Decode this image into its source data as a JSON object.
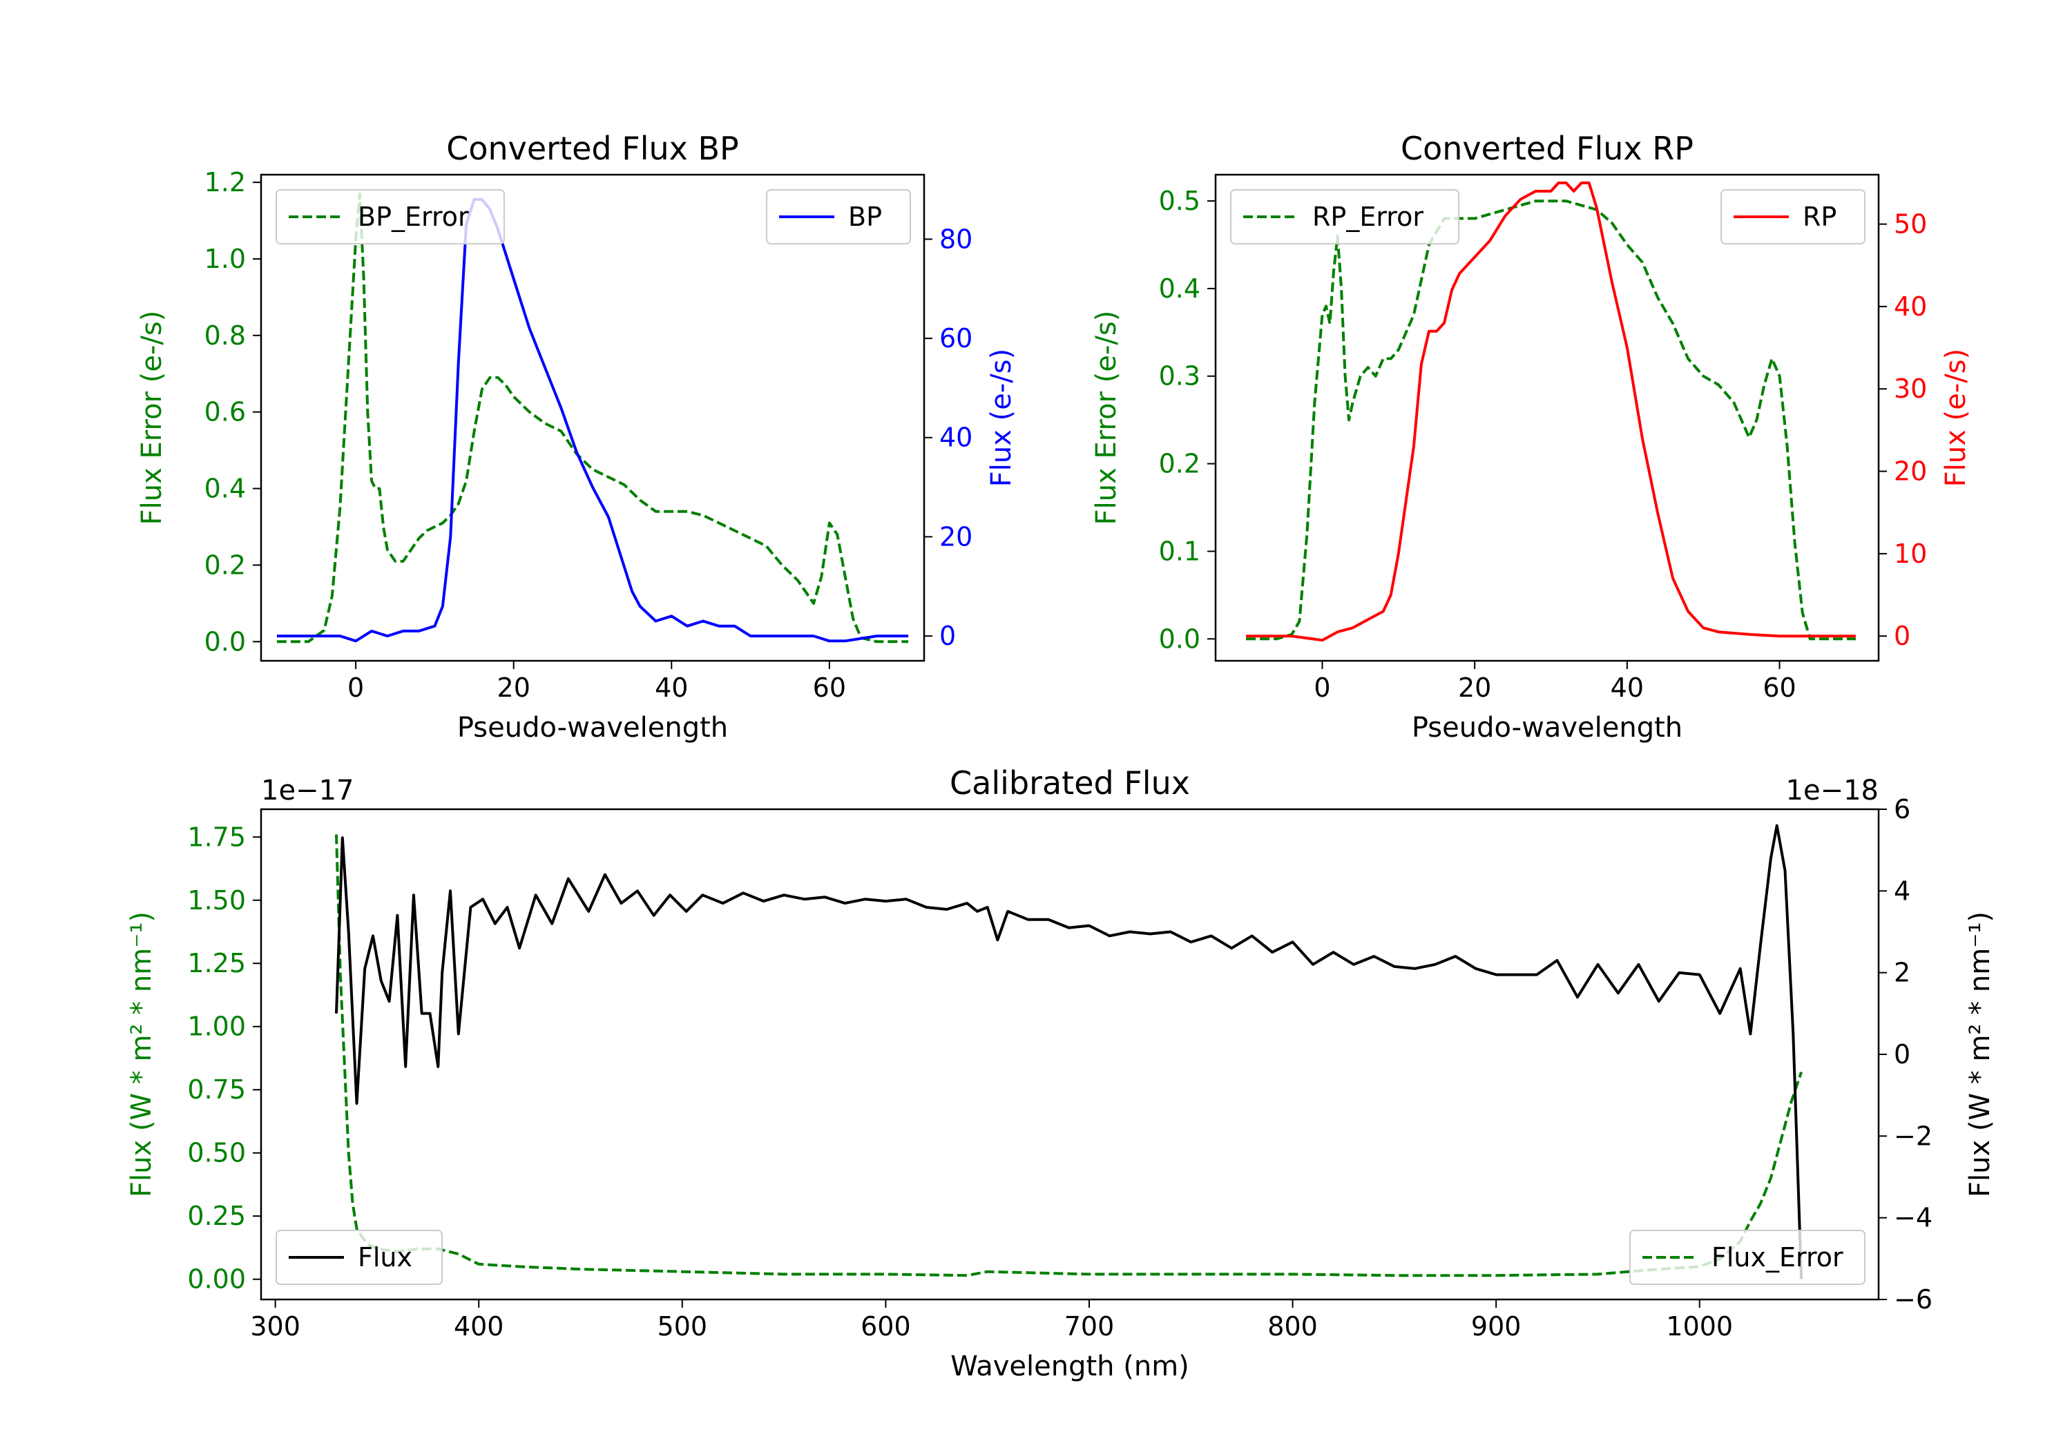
{
  "colors": {
    "green": "#008000",
    "blue": "#0000ff",
    "red": "#ff0000",
    "black": "#000000"
  },
  "chart_data": [
    {
      "id": "bp",
      "type": "line",
      "title": "Converted Flux BP",
      "xlabel": "Pseudo-wavelength",
      "ylabel_left": "Flux Error (e-/s)",
      "ylabel_right": "Flux (e-/s)",
      "xlim": [
        -12,
        72
      ],
      "ylim_left": [
        -0.05,
        1.22
      ],
      "ylim_right": [
        -5,
        93
      ],
      "xticks": [
        0,
        20,
        40,
        60
      ],
      "yticks_left": [
        0.0,
        0.2,
        0.4,
        0.6,
        0.8,
        1.0,
        1.2
      ],
      "yticks_right": [
        0,
        20,
        40,
        60,
        80
      ],
      "legend_left": "BP_Error",
      "legend_right": "BP",
      "series_left": {
        "name": "BP_Error",
        "color": "green",
        "style": "dashed",
        "x": [
          -10,
          -6,
          -4,
          -3,
          -2,
          -1,
          0,
          0.5,
          1,
          1.5,
          2,
          2.5,
          3,
          3.5,
          4,
          5,
          6,
          7,
          8,
          9,
          10,
          11,
          12,
          13,
          14,
          15,
          16,
          17,
          18,
          19,
          20,
          22,
          24,
          26,
          28,
          30,
          32,
          34,
          36,
          38,
          40,
          42,
          44,
          46,
          48,
          50,
          52,
          54,
          56,
          57,
          58,
          59,
          60,
          61,
          62,
          63,
          64,
          66,
          70
        ],
        "y": [
          0.0,
          0.0,
          0.03,
          0.12,
          0.35,
          0.7,
          1.05,
          1.17,
          0.95,
          0.6,
          0.42,
          0.4,
          0.4,
          0.3,
          0.24,
          0.21,
          0.21,
          0.24,
          0.27,
          0.29,
          0.3,
          0.31,
          0.33,
          0.36,
          0.42,
          0.55,
          0.66,
          0.69,
          0.69,
          0.67,
          0.64,
          0.6,
          0.57,
          0.55,
          0.49,
          0.45,
          0.43,
          0.41,
          0.37,
          0.34,
          0.34,
          0.34,
          0.33,
          0.31,
          0.29,
          0.27,
          0.25,
          0.2,
          0.16,
          0.13,
          0.1,
          0.17,
          0.31,
          0.28,
          0.17,
          0.06,
          0.01,
          0.0,
          0.0
        ]
      },
      "series_right": {
        "name": "BP",
        "color": "blue",
        "style": "solid",
        "x": [
          -10,
          -6,
          -4,
          -2,
          0,
          2,
          4,
          6,
          8,
          10,
          11,
          12,
          13,
          14,
          15,
          16,
          17,
          18,
          20,
          22,
          24,
          26,
          28,
          30,
          32,
          34,
          35,
          36,
          38,
          40,
          42,
          44,
          46,
          48,
          50,
          54,
          58,
          60,
          62,
          66,
          70
        ],
        "y": [
          0,
          0,
          0,
          0,
          -1,
          1,
          0,
          1,
          1,
          2,
          6,
          20,
          55,
          83,
          88,
          88,
          86,
          82,
          72,
          62,
          54,
          46,
          37,
          30,
          24,
          14,
          9,
          6,
          3,
          4,
          2,
          3,
          2,
          2,
          0,
          0,
          0,
          -1,
          -1,
          0,
          0
        ]
      }
    },
    {
      "id": "rp",
      "type": "line",
      "title": "Converted Flux RP",
      "xlabel": "Pseudo-wavelength",
      "ylabel_left": "Flux Error (e-/s)",
      "ylabel_right": "Flux (e-/s)",
      "xlim": [
        -14,
        73
      ],
      "ylim_left": [
        -0.025,
        0.53
      ],
      "ylim_right": [
        -3,
        56
      ],
      "xticks": [
        0,
        20,
        40,
        60
      ],
      "yticks_left": [
        0.0,
        0.1,
        0.2,
        0.3,
        0.4,
        0.5
      ],
      "yticks_right": [
        0,
        10,
        20,
        30,
        40,
        50
      ],
      "legend_left": "RP_Error",
      "legend_right": "RP",
      "series_left": {
        "name": "RP_Error",
        "color": "green",
        "style": "dashed",
        "x": [
          -10,
          -6,
          -4,
          -3,
          -2,
          -1,
          0,
          0.5,
          1,
          1.5,
          2,
          2.5,
          3,
          3.5,
          4,
          5,
          6,
          7,
          8,
          9,
          10,
          12,
          14,
          16,
          18,
          20,
          22,
          24,
          26,
          28,
          30,
          32,
          34,
          36,
          38,
          40,
          42,
          44,
          46,
          48,
          50,
          52,
          54,
          55,
          56,
          57,
          58,
          59,
          60,
          61,
          62,
          63,
          64,
          66,
          70
        ],
        "y": [
          0.0,
          0.0,
          0.005,
          0.02,
          0.12,
          0.27,
          0.37,
          0.38,
          0.36,
          0.42,
          0.46,
          0.4,
          0.3,
          0.25,
          0.27,
          0.3,
          0.31,
          0.3,
          0.32,
          0.32,
          0.33,
          0.37,
          0.45,
          0.48,
          0.48,
          0.48,
          0.485,
          0.49,
          0.495,
          0.5,
          0.5,
          0.5,
          0.495,
          0.49,
          0.475,
          0.45,
          0.43,
          0.39,
          0.36,
          0.32,
          0.3,
          0.29,
          0.27,
          0.25,
          0.23,
          0.25,
          0.29,
          0.32,
          0.3,
          0.22,
          0.11,
          0.03,
          0.0,
          0.0,
          0.0
        ]
      },
      "series_right": {
        "name": "RP",
        "color": "red",
        "style": "solid",
        "x": [
          -10,
          -4,
          0,
          2,
          4,
          6,
          8,
          9,
          10,
          12,
          13,
          14,
          15,
          16,
          17,
          18,
          20,
          22,
          24,
          26,
          28,
          30,
          31,
          32,
          33,
          34,
          35,
          36,
          38,
          40,
          42,
          44,
          45,
          46,
          48,
          50,
          52,
          56,
          60,
          70
        ],
        "y": [
          0,
          0,
          -0.5,
          0.5,
          1,
          2,
          3,
          5,
          10,
          23,
          33,
          37,
          37,
          38,
          42,
          44,
          46,
          48,
          51,
          53,
          54,
          54,
          55,
          55,
          54,
          55,
          55,
          52,
          43,
          35,
          24,
          15,
          11,
          7,
          3,
          1,
          0.5,
          0.2,
          0,
          0
        ]
      }
    },
    {
      "id": "calibrated",
      "type": "line",
      "title": "Calibrated Flux",
      "xlabel": "Wavelength (nm)",
      "ylabel_left": "Flux (W * m² * nm⁻¹)",
      "ylabel_right": "Flux (W * m² * nm⁻¹)",
      "offset_left": "1e−17",
      "offset_right": "1e−18",
      "xlim": [
        293,
        1088
      ],
      "ylim_left": [
        -0.08,
        1.86
      ],
      "ylim_right": [
        -6,
        6
      ],
      "xticks": [
        300,
        400,
        500,
        600,
        700,
        800,
        900,
        1000
      ],
      "yticks_left": [
        0.0,
        0.25,
        0.5,
        0.75,
        1.0,
        1.25,
        1.5,
        1.75
      ],
      "yticks_right": [
        -6,
        -4,
        -2,
        0,
        2,
        4,
        6
      ],
      "legend_left": "Flux",
      "legend_right": "Flux_Error",
      "series_flux": {
        "name": "Flux",
        "color": "black",
        "style": "solid",
        "axis": "right",
        "x": [
          330,
          333,
          336,
          340,
          344,
          348,
          352,
          356,
          360,
          364,
          368,
          372,
          376,
          380,
          382,
          386,
          390,
          396,
          402,
          408,
          414,
          420,
          428,
          436,
          444,
          454,
          462,
          470,
          478,
          486,
          494,
          502,
          510,
          520,
          530,
          540,
          550,
          560,
          570,
          580,
          590,
          600,
          610,
          620,
          630,
          640,
          645,
          650,
          655,
          660,
          665,
          670,
          680,
          690,
          700,
          710,
          720,
          730,
          740,
          750,
          760,
          770,
          780,
          790,
          800,
          810,
          820,
          830,
          840,
          850,
          860,
          870,
          880,
          890,
          900,
          910,
          920,
          930,
          940,
          950,
          960,
          970,
          980,
          990,
          1000,
          1010,
          1020,
          1025,
          1030,
          1035,
          1038,
          1042,
          1046,
          1050
        ],
        "y": [
          1.0,
          5.3,
          3.0,
          -1.2,
          2.1,
          2.9,
          1.8,
          1.3,
          3.4,
          -0.3,
          3.9,
          1.0,
          1.0,
          -0.3,
          2.0,
          4.0,
          0.5,
          3.6,
          3.8,
          3.2,
          3.6,
          2.6,
          3.9,
          3.2,
          4.3,
          3.5,
          4.4,
          3.7,
          4.0,
          3.4,
          3.9,
          3.5,
          3.9,
          3.7,
          3.95,
          3.75,
          3.9,
          3.8,
          3.85,
          3.7,
          3.8,
          3.75,
          3.8,
          3.6,
          3.55,
          3.7,
          3.5,
          3.6,
          2.8,
          3.5,
          3.4,
          3.3,
          3.3,
          3.1,
          3.15,
          2.9,
          3.0,
          2.95,
          3.0,
          2.75,
          2.9,
          2.6,
          2.9,
          2.5,
          2.75,
          2.2,
          2.5,
          2.2,
          2.4,
          2.15,
          2.1,
          2.2,
          2.4,
          2.1,
          1.95,
          1.95,
          1.95,
          2.3,
          1.4,
          2.2,
          1.5,
          2.2,
          1.3,
          2.0,
          1.95,
          1.0,
          2.1,
          0.5,
          2.7,
          4.8,
          5.6,
          4.5,
          0.5,
          -5.5
        ]
      },
      "series_error": {
        "name": "Flux_Error",
        "color": "green",
        "style": "dashed",
        "axis": "left",
        "x": [
          330,
          332,
          334,
          336,
          338,
          340,
          345,
          350,
          360,
          370,
          380,
          390,
          400,
          420,
          450,
          500,
          550,
          600,
          640,
          650,
          700,
          750,
          800,
          850,
          900,
          950,
          980,
          1000,
          1010,
          1020,
          1025,
          1030,
          1035,
          1040,
          1045,
          1050
        ],
        "y": [
          1.76,
          1.2,
          0.85,
          0.5,
          0.3,
          0.2,
          0.14,
          0.12,
          0.11,
          0.12,
          0.12,
          0.1,
          0.06,
          0.05,
          0.04,
          0.03,
          0.02,
          0.02,
          0.015,
          0.03,
          0.02,
          0.02,
          0.02,
          0.015,
          0.015,
          0.02,
          0.04,
          0.05,
          0.08,
          0.15,
          0.23,
          0.3,
          0.4,
          0.55,
          0.7,
          0.82
        ]
      }
    }
  ]
}
